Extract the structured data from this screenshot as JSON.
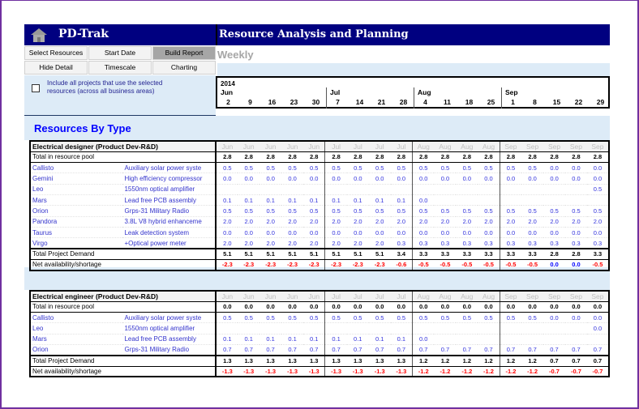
{
  "app": {
    "title": "PD-Trak",
    "page_title": "Resource Analysis and Planning",
    "view": "Weekly"
  },
  "buttons": [
    {
      "label": "Select Resources"
    },
    {
      "label": "Start Date"
    },
    {
      "label": "Build Report",
      "active": true
    },
    {
      "label": "Hide Detail"
    },
    {
      "label": "Timescale"
    },
    {
      "label": "Charting"
    }
  ],
  "include_checkbox": {
    "label": "Include all projects that use the selected resources (across all business areas)",
    "checked": false
  },
  "timeline": {
    "year": "2014",
    "months": [
      {
        "name": "Jun",
        "days": [
          "2",
          "9",
          "16",
          "23",
          "30"
        ]
      },
      {
        "name": "Jul",
        "days": [
          "7",
          "14",
          "21",
          "28"
        ]
      },
      {
        "name": "Aug",
        "days": [
          "4",
          "11",
          "18",
          "25"
        ]
      },
      {
        "name": "Sep",
        "days": [
          "1",
          "8",
          "15",
          "22",
          "29"
        ]
      }
    ]
  },
  "section_title": "Resources By Type",
  "colors": {
    "header": "#000080",
    "negative": "#ff0000",
    "non_negative": "#0000ff",
    "project": "#3333cc"
  },
  "groups": [
    {
      "title": "Electrical designer (Product Dev-R&D)",
      "pool_label": "Total in resource pool",
      "pool": [
        "2.8",
        "2.8",
        "2.8",
        "2.8",
        "2.8",
        "2.8",
        "2.8",
        "2.8",
        "2.8",
        "2.8",
        "2.8",
        "2.8",
        "2.8",
        "2.8",
        "2.8",
        "2.8",
        "2.8",
        "2.8"
      ],
      "projects": [
        {
          "name": "Callisto",
          "project": "Auxiliary solar power syste",
          "values": [
            "0.5",
            "0.5",
            "0.5",
            "0.5",
            "0.5",
            "0.5",
            "0.5",
            "0.5",
            "0.5",
            "0.5",
            "0.5",
            "0.5",
            "0.5",
            "0.5",
            "0.5",
            "0.0",
            "0.0",
            "0.0"
          ]
        },
        {
          "name": "Gemini",
          "project": "High efficiency compressor",
          "values": [
            "0.0",
            "0.0",
            "0.0",
            "0.0",
            "0.0",
            "0.0",
            "0.0",
            "0.0",
            "0.0",
            "0.0",
            "0.0",
            "0.0",
            "0.0",
            "0.0",
            "0.0",
            "0.0",
            "0.0",
            "0.0"
          ]
        },
        {
          "name": "Leo",
          "project": "1550nm optical amplifier",
          "values": [
            "",
            "",
            "",
            "",
            "",
            "",
            "",
            "",
            "",
            "",
            "",
            "",
            "",
            "",
            "",
            "",
            "",
            "0.5"
          ]
        },
        {
          "name": "Mars",
          "project": "Lead free PCB assembly",
          "values": [
            "0.1",
            "0.1",
            "0.1",
            "0.1",
            "0.1",
            "0.1",
            "0.1",
            "0.1",
            "0.1",
            "0.0",
            "",
            "",
            "",
            "",
            "",
            "",
            "",
            ""
          ]
        },
        {
          "name": "Orion",
          "project": "Grps-31 Military Radio",
          "values": [
            "0.5",
            "0.5",
            "0.5",
            "0.5",
            "0.5",
            "0.5",
            "0.5",
            "0.5",
            "0.5",
            "0.5",
            "0.5",
            "0.5",
            "0.5",
            "0.5",
            "0.5",
            "0.5",
            "0.5",
            "0.5"
          ]
        },
        {
          "name": "Pandora",
          "project": "3.8L V8 hybrid enhanceme",
          "values": [
            "2.0",
            "2.0",
            "2.0",
            "2.0",
            "2.0",
            "2.0",
            "2.0",
            "2.0",
            "2.0",
            "2.0",
            "2.0",
            "2.0",
            "2.0",
            "2.0",
            "2.0",
            "2.0",
            "2.0",
            "2.0"
          ]
        },
        {
          "name": "Taurus",
          "project": "Leak detection system",
          "values": [
            "0.0",
            "0.0",
            "0.0",
            "0.0",
            "0.0",
            "0.0",
            "0.0",
            "0.0",
            "0.0",
            "0.0",
            "0.0",
            "0.0",
            "0.0",
            "0.0",
            "0.0",
            "0.0",
            "0.0",
            "0.0"
          ]
        },
        {
          "name": "Virgo",
          "project": "+Optical power meter",
          "values": [
            "2.0",
            "2.0",
            "2.0",
            "2.0",
            "2.0",
            "2.0",
            "2.0",
            "2.0",
            "0.3",
            "0.3",
            "0.3",
            "0.3",
            "0.3",
            "0.3",
            "0.3",
            "0.3",
            "0.3",
            "0.3"
          ]
        }
      ],
      "demand_label": "Total Project Demand",
      "demand": [
        "5.1",
        "5.1",
        "5.1",
        "5.1",
        "5.1",
        "5.1",
        "5.1",
        "5.1",
        "3.4",
        "3.3",
        "3.3",
        "3.3",
        "3.3",
        "3.3",
        "3.3",
        "2.8",
        "2.8",
        "3.3"
      ],
      "net_label": "Net availability/shortage",
      "net": [
        "-2.3",
        "-2.3",
        "-2.3",
        "-2.3",
        "-2.3",
        "-2.3",
        "-2.3",
        "-2.3",
        "-0.6",
        "-0.5",
        "-0.5",
        "-0.5",
        "-0.5",
        "-0.5",
        "-0.5",
        "0.0",
        "0.0",
        "-0.5"
      ]
    },
    {
      "title": "Electrical engineer (Product Dev-R&D)",
      "pool_label": "Total in resource pool",
      "pool": [
        "0.0",
        "0.0",
        "0.0",
        "0.0",
        "0.0",
        "0.0",
        "0.0",
        "0.0",
        "0.0",
        "0.0",
        "0.0",
        "0.0",
        "0.0",
        "0.0",
        "0.0",
        "0.0",
        "0.0",
        "0.0"
      ],
      "projects": [
        {
          "name": "Callisto",
          "project": "Auxiliary solar power syste",
          "values": [
            "0.5",
            "0.5",
            "0.5",
            "0.5",
            "0.5",
            "0.5",
            "0.5",
            "0.5",
            "0.5",
            "0.5",
            "0.5",
            "0.5",
            "0.5",
            "0.5",
            "0.5",
            "0.0",
            "0.0",
            "0.0"
          ]
        },
        {
          "name": "Leo",
          "project": "1550nm optical amplifier",
          "values": [
            "",
            "",
            "",
            "",
            "",
            "",
            "",
            "",
            "",
            "",
            "",
            "",
            "",
            "",
            "",
            "",
            "",
            "0.0"
          ]
        },
        {
          "name": "Mars",
          "project": "Lead free PCB assembly",
          "values": [
            "0.1",
            "0.1",
            "0.1",
            "0.1",
            "0.1",
            "0.1",
            "0.1",
            "0.1",
            "0.1",
            "0.0",
            "",
            "",
            "",
            "",
            "",
            "",
            "",
            ""
          ]
        },
        {
          "name": "Orion",
          "project": "Grps-31 Military Radio",
          "values": [
            "0.7",
            "0.7",
            "0.7",
            "0.7",
            "0.7",
            "0.7",
            "0.7",
            "0.7",
            "0.7",
            "0.7",
            "0.7",
            "0.7",
            "0.7",
            "0.7",
            "0.7",
            "0.7",
            "0.7",
            "0.7"
          ]
        }
      ],
      "demand_label": "Total Project Demand",
      "demand": [
        "1.3",
        "1.3",
        "1.3",
        "1.3",
        "1.3",
        "1.3",
        "1.3",
        "1.3",
        "1.3",
        "1.2",
        "1.2",
        "1.2",
        "1.2",
        "1.2",
        "1.2",
        "0.7",
        "0.7",
        "0.7"
      ],
      "net_label": "Net availability/shortage",
      "net": [
        "-1.3",
        "-1.3",
        "-1.3",
        "-1.3",
        "-1.3",
        "-1.3",
        "-1.3",
        "-1.3",
        "-1.3",
        "-1.2",
        "-1.2",
        "-1.2",
        "-1.2",
        "-1.2",
        "-1.2",
        "-0.7",
        "-0.7",
        "-0.7"
      ]
    }
  ]
}
